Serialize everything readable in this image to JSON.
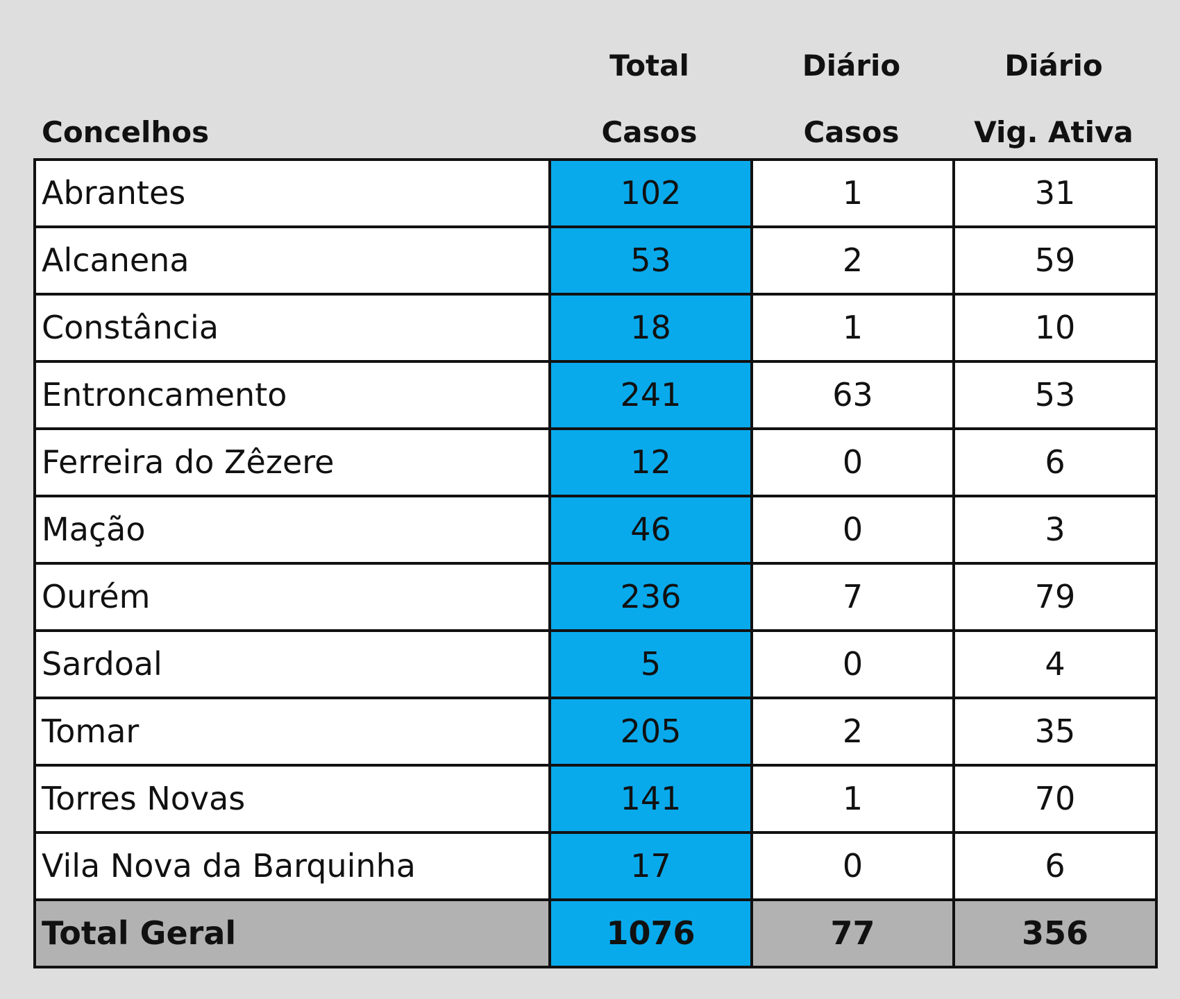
{
  "header": {
    "concelhos": "Concelhos",
    "col2_line1": "Total",
    "col2_line2": "Casos",
    "col3_line1": "Diário",
    "col3_line2": "Casos",
    "col4_line1": "Diário",
    "col4_line2": "Vig. Ativa"
  },
  "rows": [
    {
      "name": "Abrantes",
      "total": "102",
      "diario": "1",
      "vig": "31"
    },
    {
      "name": "Alcanena",
      "total": "53",
      "diario": "2",
      "vig": "59"
    },
    {
      "name": "Constância",
      "total": "18",
      "diario": "1",
      "vig": "10"
    },
    {
      "name": "Entroncamento",
      "total": "241",
      "diario": "63",
      "vig": "53"
    },
    {
      "name": "Ferreira do Zêzere",
      "total": "12",
      "diario": "0",
      "vig": "6"
    },
    {
      "name": "Mação",
      "total": "46",
      "diario": "0",
      "vig": "3"
    },
    {
      "name": "Ourém",
      "total": "236",
      "diario": "7",
      "vig": "79"
    },
    {
      "name": "Sardoal",
      "total": "5",
      "diario": "0",
      "vig": "4"
    },
    {
      "name": "Tomar",
      "total": "205",
      "diario": "2",
      "vig": "35"
    },
    {
      "name": "Torres Novas",
      "total": "141",
      "diario": "1",
      "vig": "70"
    },
    {
      "name": "Vila Nova da Barquinha",
      "total": "17",
      "diario": "0",
      "vig": "6"
    }
  ],
  "total_row": {
    "name": "Total Geral",
    "total": "1076",
    "diario": "77",
    "vig": "356"
  },
  "colors": {
    "highlight": "#08aaec",
    "total_row_bg": "#b2b2b2",
    "page_bg": "#dedede"
  }
}
